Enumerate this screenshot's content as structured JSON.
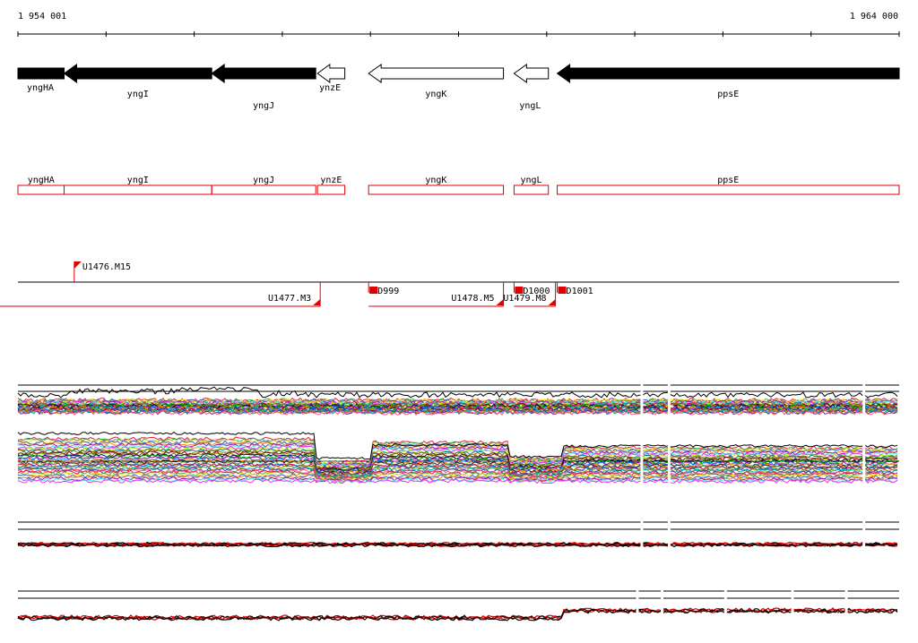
{
  "coords": {
    "start": "1 954 001",
    "end": "1 964 000"
  },
  "range_bp": [
    1954001,
    1964000
  ],
  "genes": [
    {
      "name": "yngHA",
      "start": 1954001,
      "end": 1954525,
      "strand": "-",
      "style": "filled",
      "label_row": 0
    },
    {
      "name": "yngI",
      "start": 1954525,
      "end": 1956200,
      "strand": "-",
      "style": "filled",
      "label_row": 1
    },
    {
      "name": "yngJ",
      "start": 1956200,
      "end": 1957380,
      "strand": "-",
      "style": "filled",
      "label_row": 2
    },
    {
      "name": "ynzE",
      "start": 1957400,
      "end": 1957710,
      "strand": "-",
      "style": "open",
      "label_row": 0
    },
    {
      "name": "yngK",
      "start": 1957980,
      "end": 1959510,
      "strand": "-",
      "style": "open",
      "label_row": 1
    },
    {
      "name": "yngL",
      "start": 1959630,
      "end": 1960020,
      "strand": "-",
      "style": "open",
      "label_row": 2
    },
    {
      "name": "ppsE",
      "start": 1960120,
      "end": 1964000,
      "strand": "-",
      "style": "filled",
      "label_row": 1
    }
  ],
  "features": [
    {
      "name": "U1476.M15",
      "kind": "upper-flag",
      "pos": 1954640
    },
    {
      "name": "U1477.M3",
      "kind": "left-span",
      "start": 1954001,
      "end": 1957380
    },
    {
      "name": "D999",
      "kind": "right-flag",
      "start": 1957980,
      "end": 1959510
    },
    {
      "name": "U1478.M5",
      "kind": "left-span",
      "start": 1957980,
      "end": 1959510
    },
    {
      "name": "D1000",
      "kind": "right-flag",
      "start": 1959630,
      "end": 1960100
    },
    {
      "name": "U1479.M8",
      "kind": "left-span",
      "start": 1959630,
      "end": 1960100
    },
    {
      "name": "D1001",
      "kind": "right-flag",
      "start": 1960120,
      "end": 1964000
    }
  ],
  "tracks": [
    {
      "name": "expression-track-1",
      "palette": "multi",
      "levels": 26,
      "gaps_bp": [
        1961080,
        1961390,
        1963600
      ]
    },
    {
      "name": "expression-track-2",
      "palette": "multi",
      "levels": 34,
      "gaps_bp": [
        1961080,
        1961390,
        1963600
      ]
    },
    {
      "name": "expression-track-3",
      "palette": "red-black",
      "levels": 6,
      "gaps_bp": [
        1961080,
        1961390,
        1963600
      ]
    },
    {
      "name": "expression-track-4",
      "palette": "red-black",
      "levels": 4,
      "gaps_bp": [
        1961030,
        1961310,
        1962030,
        1962790,
        1963400
      ]
    }
  ],
  "colors": {
    "gene_fill": "#000000",
    "feature_red": "#e00000",
    "axis": "#000000"
  }
}
